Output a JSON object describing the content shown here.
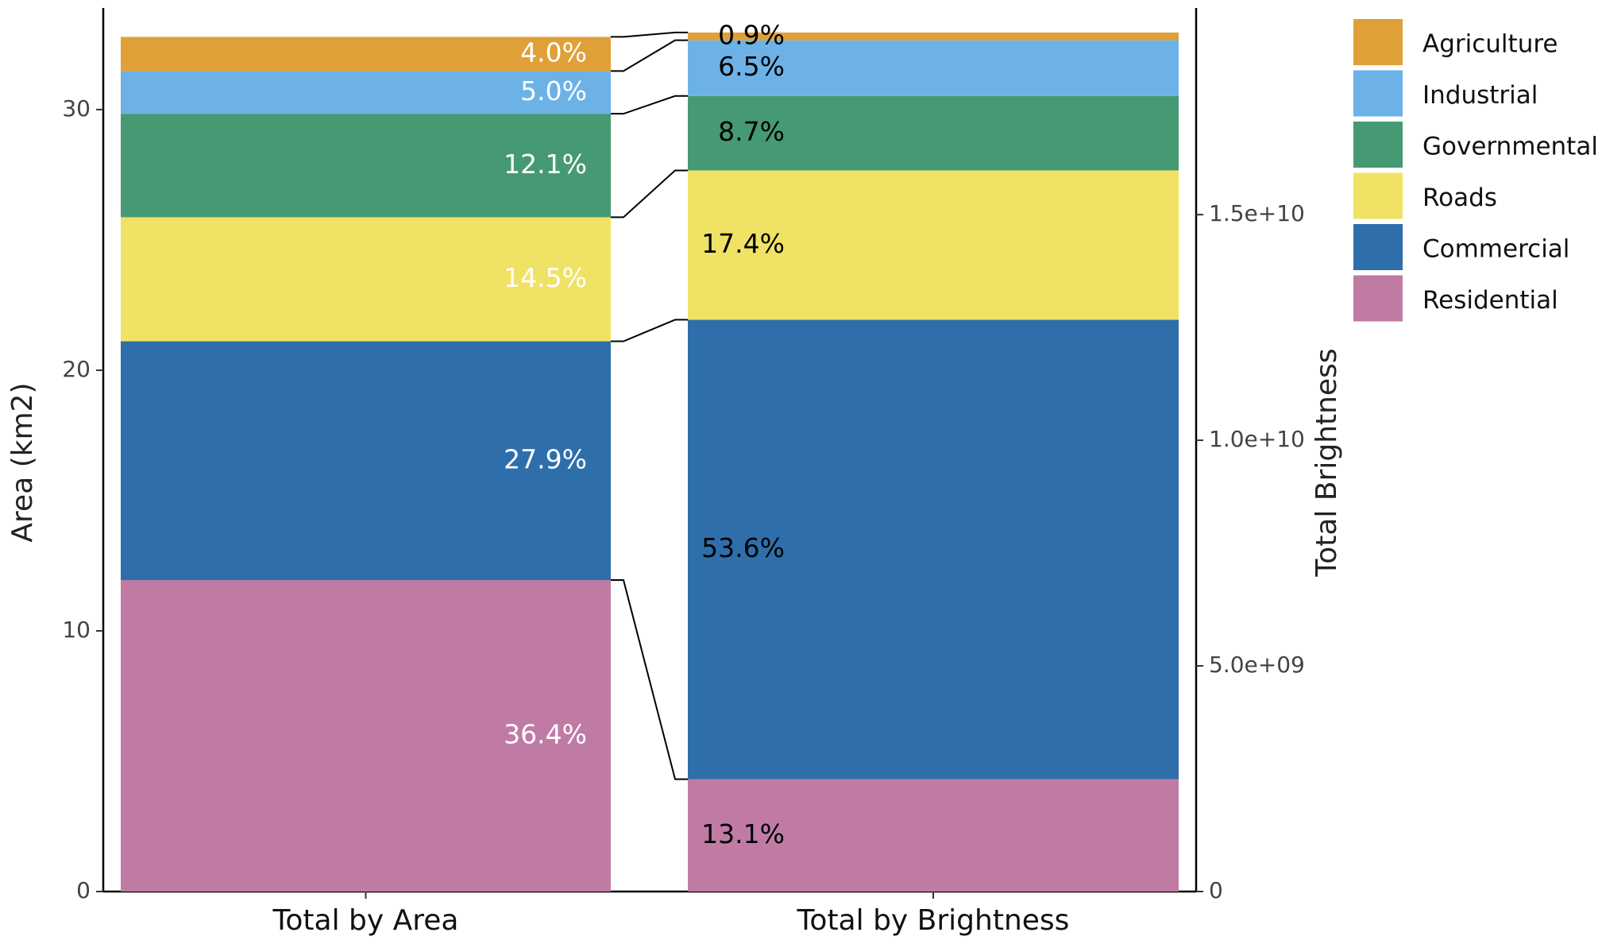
{
  "chart_data": {
    "type": "stacked_bar",
    "categories": [
      "Total by Area",
      "Total by Brightness"
    ],
    "category_axis": [
      "y",
      "y2"
    ],
    "ylabel": "Area (km2)",
    "y2label": "Total Brightness",
    "ylim": [
      0,
      33.9
    ],
    "yticks": [
      0,
      10,
      20,
      30
    ],
    "y2lim": [
      0,
      19580000000
    ],
    "y2ticks": [
      0,
      {
        "value": 5000000000,
        "label": "5.0e+09"
      },
      {
        "value": 10000000000,
        "label": "1.0e+10"
      },
      {
        "value": 15000000000,
        "label": "1.5e+10"
      }
    ],
    "label_colors": [
      "#ffffff",
      "#000000"
    ],
    "legend": "top-right",
    "series": [
      {
        "name": "Residential",
        "color": "#c07ba5",
        "values": [
          11.95,
          2490000000
        ],
        "value_labels": [
          "36.4%",
          "13.1%"
        ]
      },
      {
        "name": "Commercial",
        "color": "#2e6fab",
        "values": [
          9.16,
          10180000000
        ],
        "value_labels": [
          "27.9%",
          "53.6%"
        ]
      },
      {
        "name": "Roads",
        "color": "#f0e264",
        "values": [
          4.76,
          3310000000
        ],
        "value_labels": [
          "14.5%",
          "17.4%"
        ]
      },
      {
        "name": "Governmental",
        "color": "#469a73",
        "values": [
          3.97,
          1650000000
        ],
        "value_labels": [
          "12.1%",
          "8.7%"
        ]
      },
      {
        "name": "Industrial",
        "color": "#6cb2e6",
        "values": [
          1.64,
          1235000000
        ],
        "value_labels": [
          "5.0%",
          "6.5%"
        ]
      },
      {
        "name": "Agriculture",
        "color": "#e0a038",
        "values": [
          1.31,
          171000000
        ],
        "value_labels": [
          "4.0%",
          "0.9%"
        ]
      }
    ]
  }
}
